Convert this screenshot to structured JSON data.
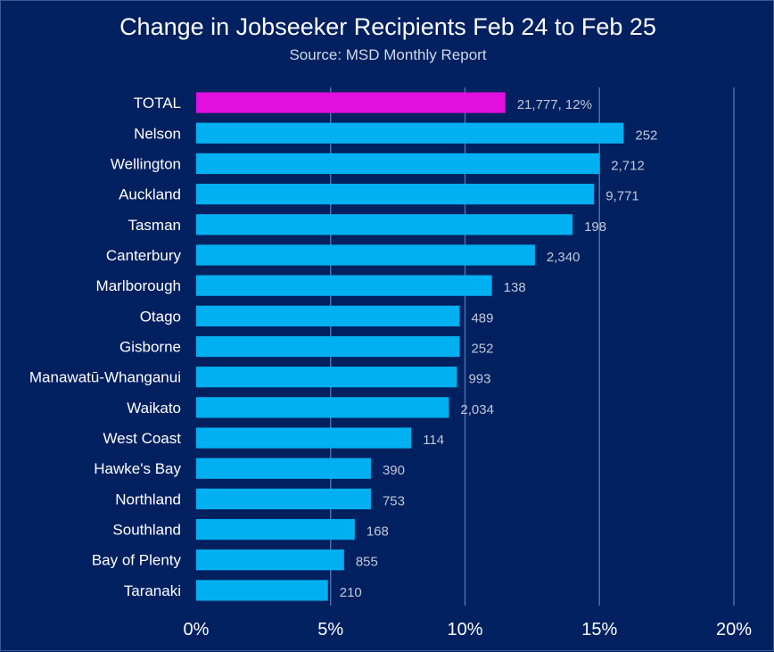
{
  "chart_data": {
    "type": "bar",
    "orientation": "horizontal",
    "title": "Change in Jobseeker Recipients Feb 24 to Feb 25",
    "subtitle": "Source: MSD Monthly Report",
    "categories": [
      "TOTAL",
      "Nelson",
      "Wellington",
      "Auckland",
      "Tasman",
      "Canterbury",
      "Marlborough",
      "Otago",
      "Gisborne",
      "Manawatū-Whanganui",
      "Waikato",
      "West Coast",
      "Hawke's Bay",
      "Northland",
      "Southland",
      "Bay of Plenty",
      "Taranaki"
    ],
    "values": [
      11.5,
      15.9,
      15.0,
      14.8,
      14.0,
      12.6,
      11.0,
      9.8,
      9.8,
      9.7,
      9.4,
      8.0,
      6.5,
      6.5,
      5.9,
      5.5,
      4.9
    ],
    "data_labels": [
      "21,777, 12%",
      "252",
      "2,712",
      "9,771",
      "198",
      "2,340",
      "138",
      "489",
      "252",
      "993",
      "2,034",
      "114",
      "390",
      "753",
      "168",
      "855",
      "210"
    ],
    "highlight_index": 0,
    "xlim": [
      0,
      20
    ],
    "xticks": [
      0,
      5,
      10,
      15,
      20
    ],
    "xtick_labels": [
      "0%",
      "5%",
      "10%",
      "15%",
      "20%"
    ],
    "colors": {
      "background": "#002060",
      "bar": "#00B0F0",
      "highlight": "#E10FE0",
      "grid": "#4A6FA8"
    },
    "grid": true,
    "legend": "none"
  }
}
